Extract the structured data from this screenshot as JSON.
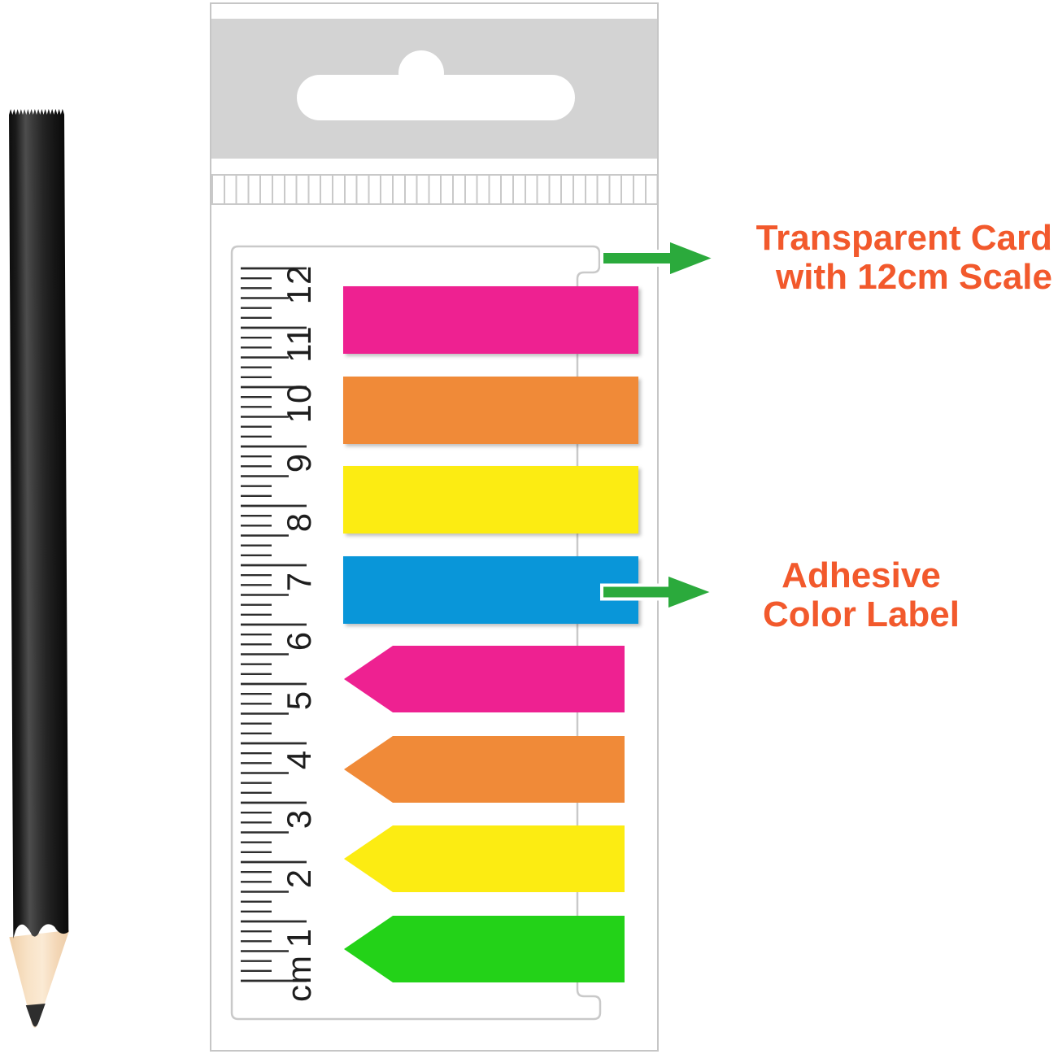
{
  "annotations": {
    "transparent_card": {
      "line1": "Transparent Card",
      "line2": "with 12cm Scale"
    },
    "adhesive_label": {
      "line1": "Adhesive",
      "line2": "Color Label"
    }
  },
  "ruler": {
    "unit": "cm",
    "numbers": [
      "1",
      "2",
      "3",
      "4",
      "5",
      "6",
      "7",
      "8",
      "9",
      "10",
      "11",
      "12"
    ]
  },
  "tabs": [
    {
      "name": "pink-rect-tab",
      "shape": "rect",
      "color": "#ee2191"
    },
    {
      "name": "orange-rect-tab",
      "shape": "rect",
      "color": "#f08a38"
    },
    {
      "name": "yellow-rect-tab",
      "shape": "rect",
      "color": "#fcec12"
    },
    {
      "name": "blue-rect-tab",
      "shape": "rect",
      "color": "#0996d9"
    },
    {
      "name": "pink-arrow-tab",
      "shape": "arrow",
      "color": "#ee2191"
    },
    {
      "name": "orange-arrow-tab",
      "shape": "arrow",
      "color": "#f08a38"
    },
    {
      "name": "yellow-arrow-tab",
      "shape": "arrow",
      "color": "#fcec12"
    },
    {
      "name": "green-arrow-tab",
      "shape": "arrow",
      "color": "#23d218"
    }
  ],
  "colors": {
    "annotation_text": "#f2592c",
    "pointer_arrow_green": "#2baa3c",
    "package_header_gray": "#d3d3d3",
    "card_border_gray": "#c9c9c9",
    "ruler_ink": "#2d2d2d"
  }
}
